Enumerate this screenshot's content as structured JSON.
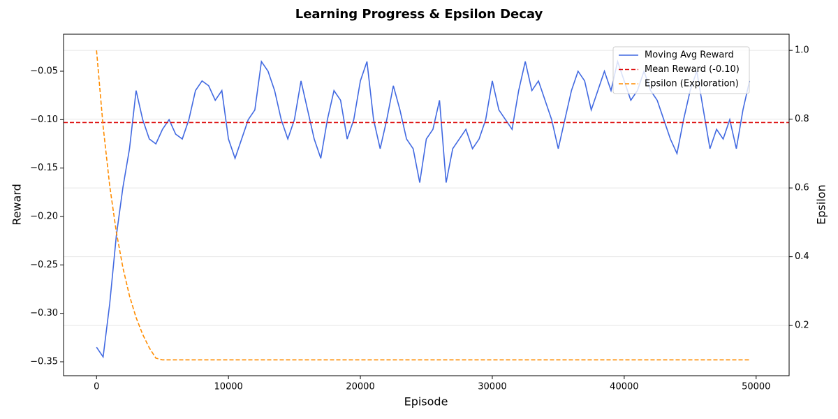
{
  "chart_data": {
    "type": "line",
    "title": "Learning Progress & Epsilon Decay",
    "xlabel": "Episode",
    "ylabel": "Reward",
    "y2label": "Epsilon",
    "x": [
      0,
      500,
      1000,
      1500,
      2000,
      2500,
      3000,
      3500,
      4000,
      4500,
      5000,
      5500,
      6000,
      6500,
      7000,
      7500,
      8000,
      8500,
      9000,
      9500,
      10000,
      10500,
      11000,
      11500,
      12000,
      12500,
      13000,
      13500,
      14000,
      14500,
      15000,
      15500,
      16000,
      16500,
      17000,
      17500,
      18000,
      18500,
      19000,
      19500,
      20000,
      20500,
      21000,
      21500,
      22000,
      22500,
      23000,
      23500,
      24000,
      24500,
      25000,
      25500,
      26000,
      26500,
      27000,
      27500,
      28000,
      28500,
      29000,
      29500,
      30000,
      30500,
      31000,
      31500,
      32000,
      32500,
      33000,
      33500,
      34000,
      34500,
      35000,
      35500,
      36000,
      36500,
      37000,
      37500,
      38000,
      38500,
      39000,
      39500,
      40000,
      40500,
      41000,
      41500,
      42000,
      42500,
      43000,
      43500,
      44000,
      44500,
      45000,
      45500,
      46000,
      46500,
      47000,
      47500,
      48000,
      48500,
      49000,
      49500
    ],
    "series": [
      {
        "name": "Moving Avg Reward",
        "color": "#4169e1",
        "dash": false,
        "axis": "y",
        "values": [
          -0.335,
          -0.345,
          -0.29,
          -0.22,
          -0.17,
          -0.13,
          -0.07,
          -0.1,
          -0.12,
          -0.125,
          -0.11,
          -0.1,
          -0.115,
          -0.12,
          -0.1,
          -0.07,
          -0.06,
          -0.065,
          -0.08,
          -0.07,
          -0.12,
          -0.14,
          -0.12,
          -0.1,
          -0.09,
          -0.04,
          -0.05,
          -0.07,
          -0.1,
          -0.12,
          -0.1,
          -0.06,
          -0.09,
          -0.12,
          -0.14,
          -0.1,
          -0.07,
          -0.08,
          -0.12,
          -0.1,
          -0.06,
          -0.04,
          -0.1,
          -0.13,
          -0.1,
          -0.065,
          -0.09,
          -0.12,
          -0.13,
          -0.165,
          -0.12,
          -0.11,
          -0.08,
          -0.165,
          -0.13,
          -0.12,
          -0.11,
          -0.13,
          -0.12,
          -0.1,
          -0.06,
          -0.09,
          -0.1,
          -0.11,
          -0.07,
          -0.04,
          -0.07,
          -0.06,
          -0.08,
          -0.1,
          -0.13,
          -0.1,
          -0.07,
          -0.05,
          -0.06,
          -0.09,
          -0.07,
          -0.05,
          -0.07,
          -0.04,
          -0.06,
          -0.08,
          -0.07,
          -0.05,
          -0.07,
          -0.08,
          -0.1,
          -0.12,
          -0.135,
          -0.1,
          -0.07,
          -0.05,
          -0.09,
          -0.13,
          -0.11,
          -0.12,
          -0.1,
          -0.13,
          -0.09,
          -0.06
        ]
      },
      {
        "name": "Mean Reward (-0.10)",
        "color": "#dd1111",
        "dash": true,
        "axis": "y",
        "kind": "hline",
        "value": -0.103
      },
      {
        "name": "Epsilon (Exploration)",
        "color": "#ff8c00",
        "dash": true,
        "axis": "y2",
        "values": [
          1.0,
          0.779,
          0.606,
          0.472,
          0.368,
          0.286,
          0.223,
          0.174,
          0.135,
          0.105,
          0.1,
          0.1,
          0.1,
          0.1,
          0.1,
          0.1,
          0.1,
          0.1,
          0.1,
          0.1,
          0.1,
          0.1,
          0.1,
          0.1,
          0.1,
          0.1,
          0.1,
          0.1,
          0.1,
          0.1,
          0.1,
          0.1,
          0.1,
          0.1,
          0.1,
          0.1,
          0.1,
          0.1,
          0.1,
          0.1,
          0.1,
          0.1,
          0.1,
          0.1,
          0.1,
          0.1,
          0.1,
          0.1,
          0.1,
          0.1,
          0.1,
          0.1,
          0.1,
          0.1,
          0.1,
          0.1,
          0.1,
          0.1,
          0.1,
          0.1,
          0.1,
          0.1,
          0.1,
          0.1,
          0.1,
          0.1,
          0.1,
          0.1,
          0.1,
          0.1,
          0.1,
          0.1,
          0.1,
          0.1,
          0.1,
          0.1,
          0.1,
          0.1,
          0.1,
          0.1,
          0.1,
          0.1,
          0.1,
          0.1,
          0.1,
          0.1,
          0.1,
          0.1,
          0.1,
          0.1,
          0.1,
          0.1,
          0.1,
          0.1,
          0.1,
          0.1,
          0.1,
          0.1,
          0.1,
          0.1
        ]
      }
    ],
    "xlim": [
      -2500,
      52500
    ],
    "xticks": [
      0,
      10000,
      20000,
      30000,
      40000,
      50000
    ],
    "ylim": [
      -0.3644,
      -0.0118
    ],
    "yticks": [
      {
        "value": -0.35,
        "label": "−0.35"
      },
      {
        "value": -0.3,
        "label": "−0.30"
      },
      {
        "value": -0.25,
        "label": "−0.25"
      },
      {
        "value": -0.2,
        "label": "−0.20"
      },
      {
        "value": -0.15,
        "label": "−0.15"
      },
      {
        "value": -0.1,
        "label": "−0.10"
      },
      {
        "value": -0.05,
        "label": "−0.05"
      }
    ],
    "y2lim": [
      0.054,
      1.047
    ],
    "y2ticks": [
      0.2,
      0.4,
      0.6,
      0.8,
      {
        "value": 1,
        "label": "1.0"
      }
    ],
    "grid": true,
    "legend": "upper right"
  }
}
